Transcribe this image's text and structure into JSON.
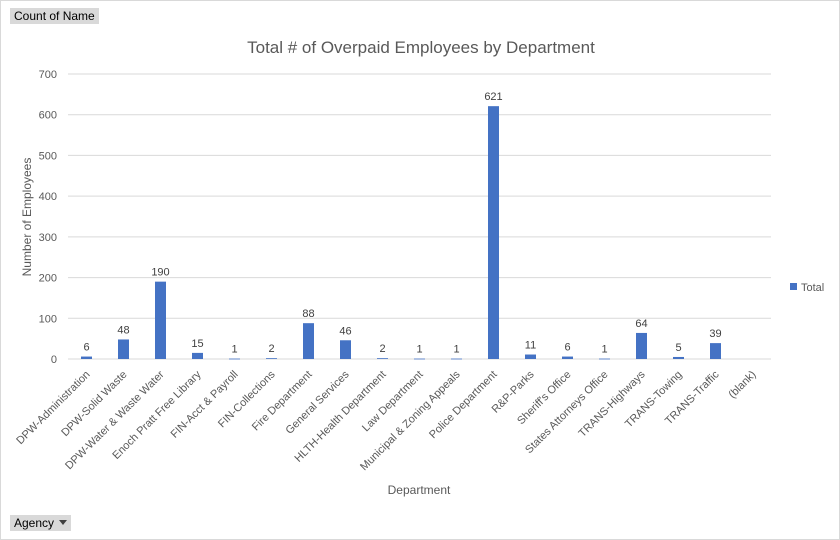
{
  "pivot": {
    "values_field": "Count of  Name",
    "axis_field": "Agency"
  },
  "colors": {
    "bar": "#4472c4",
    "gridline": "#d9d9d9",
    "text": "#595959",
    "field_button_bg": "#d9d9d9"
  },
  "icons": {
    "agency_dropdown": "dropdown-arrow-icon"
  },
  "chart_data": {
    "type": "bar",
    "title": "Total # of Overpaid Employees by Department",
    "xlabel": "Department",
    "ylabel": "Number of Employees",
    "ylim": [
      0,
      700
    ],
    "yticks": [
      0,
      100,
      200,
      300,
      400,
      500,
      600,
      700
    ],
    "grid": true,
    "legend_position": "right",
    "categories": [
      "DPW-Administration",
      "DPW-Solid Waste",
      "DPW-Water & Waste Water",
      "Enoch Pratt Free Library",
      "FIN-Acct & Payroll",
      "FIN-Collections",
      "Fire Department",
      "General Services",
      "HLTH-Health Department",
      "Law Department",
      "Municipal & Zoning Appeals",
      "Police Department",
      "R&P-Parks",
      "Sheriff's Office",
      "States Attorneys Office",
      "TRANS-Highways",
      "TRANS-Towing",
      "TRANS-Traffic",
      "(blank)"
    ],
    "series": [
      {
        "name": "Total",
        "values": [
          6,
          48,
          190,
          15,
          1,
          2,
          88,
          46,
          2,
          1,
          1,
          621,
          11,
          6,
          1,
          64,
          5,
          39,
          null
        ]
      }
    ]
  }
}
